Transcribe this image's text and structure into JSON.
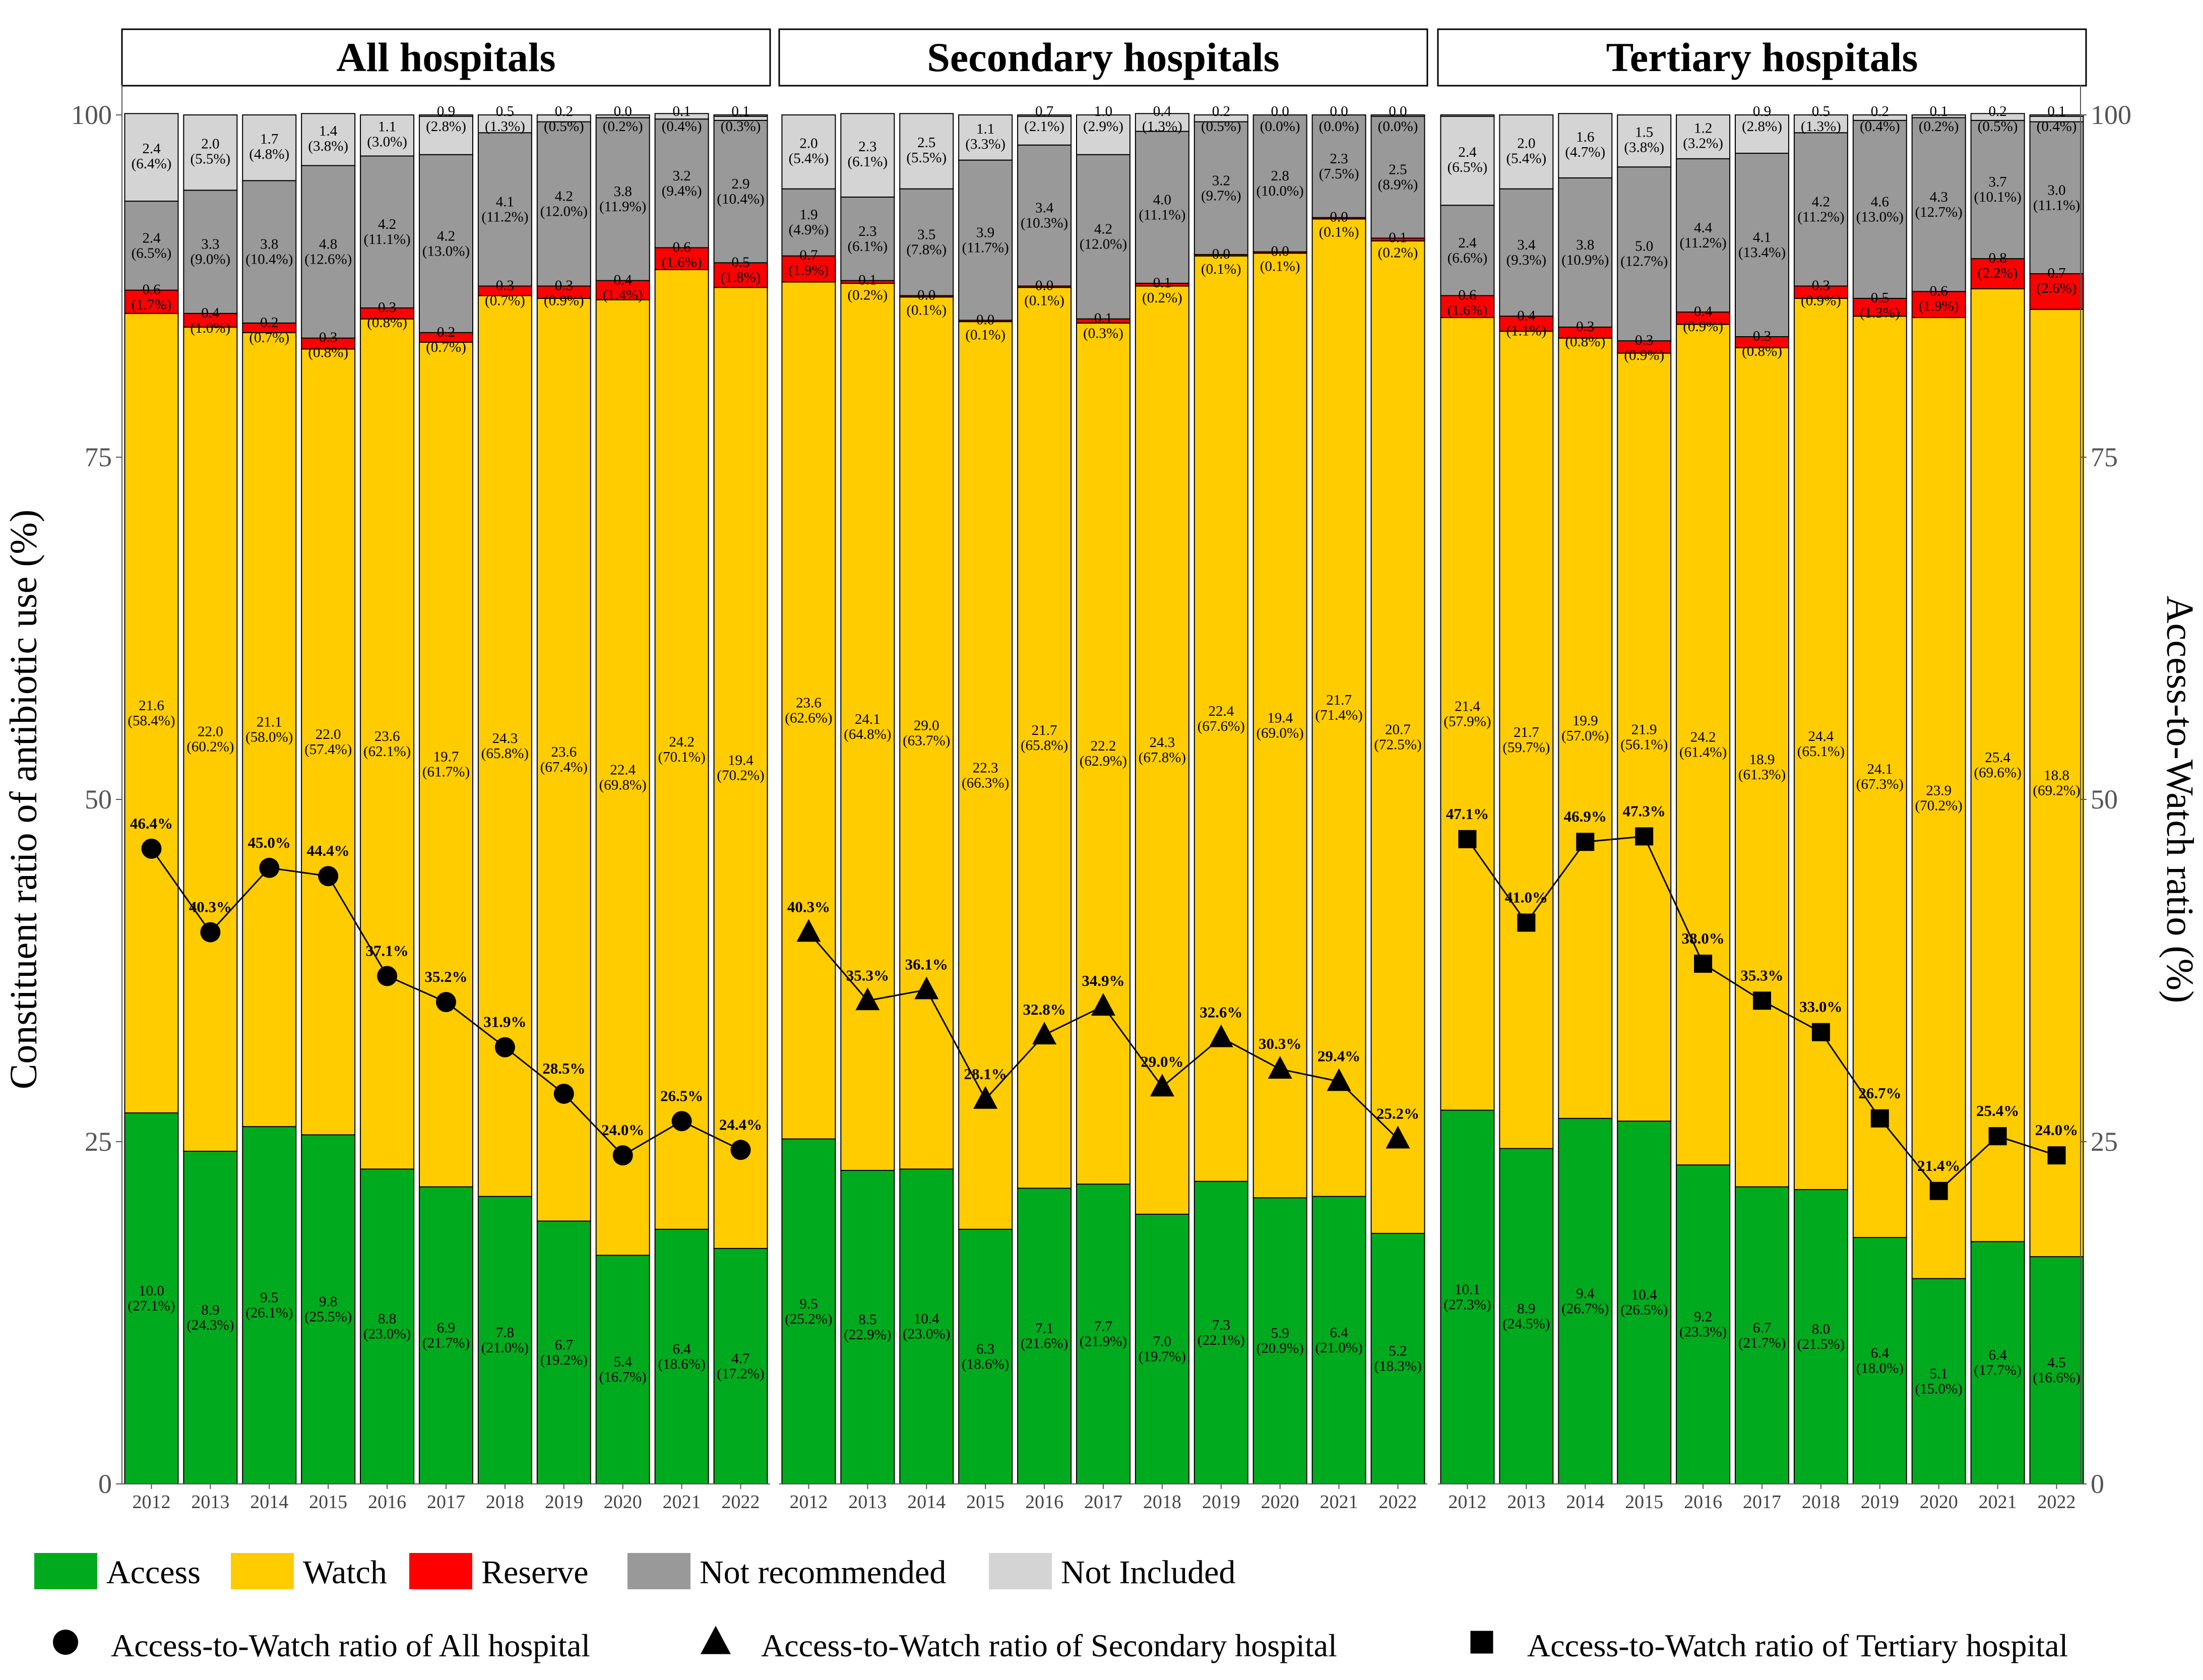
{
  "chart_data": {
    "type": "bar",
    "stacked": true,
    "ylabel_left": "Constituent ratio of antibiotic use (%)",
    "ylabel_right": "Access-to-Watch ratio (%)",
    "ylim": [
      0,
      100
    ],
    "y_ticks": [
      0,
      25,
      50,
      75,
      100
    ],
    "categories": [
      "2012",
      "2013",
      "2014",
      "2015",
      "2016",
      "2017",
      "2018",
      "2019",
      "2020",
      "2021",
      "2022"
    ],
    "colors": {
      "Access": "#00AA1F",
      "Watch": "#FFCC00",
      "Reserve": "#FF0000",
      "Not recommended": "#999999",
      "Not Included": "#D4D4D4"
    },
    "legend": {
      "categories": [
        {
          "name": "Access",
          "color": "#00AA1F"
        },
        {
          "name": "Watch",
          "color": "#FFCC00"
        },
        {
          "name": "Reserve",
          "color": "#FF0000"
        },
        {
          "name": "Not recommended",
          "color": "#999999"
        },
        {
          "name": "Not Included",
          "color": "#D4D4D4"
        }
      ],
      "markers": [
        {
          "shape": "circle",
          "label": "Access-to-Watch ratio of All hospital"
        },
        {
          "shape": "triangle",
          "label": "Access-to-Watch ratio of Secondary hospital"
        },
        {
          "shape": "square",
          "label": "Access-to-Watch ratio of Tertiary hospital"
        }
      ]
    },
    "panels": [
      {
        "title": "All hospitals",
        "marker": "circle",
        "access_to_watch": [
          46.4,
          40.3,
          45.0,
          44.4,
          37.1,
          35.2,
          31.9,
          28.5,
          24.0,
          26.5,
          24.4
        ],
        "series": [
          {
            "name": "Access",
            "values": [
              10.0,
              8.9,
              9.5,
              9.8,
              8.8,
              6.9,
              7.8,
              6.7,
              5.4,
              6.4,
              4.7
            ],
            "percent": [
              27.1,
              24.3,
              26.1,
              25.5,
              23.0,
              21.7,
              21.0,
              19.2,
              16.7,
              18.6,
              17.2
            ]
          },
          {
            "name": "Watch",
            "values": [
              21.6,
              22.0,
              21.1,
              22.0,
              23.6,
              19.7,
              24.3,
              23.6,
              22.4,
              24.2,
              19.4
            ],
            "percent": [
              58.4,
              60.2,
              58.0,
              57.4,
              62.1,
              61.7,
              65.8,
              67.4,
              69.8,
              70.1,
              70.2
            ]
          },
          {
            "name": "Reserve",
            "values": [
              0.6,
              0.4,
              0.2,
              0.3,
              0.3,
              0.2,
              0.3,
              0.3,
              0.4,
              0.6,
              0.5
            ],
            "percent": [
              1.7,
              1.0,
              0.7,
              0.8,
              0.8,
              0.7,
              0.7,
              0.9,
              1.4,
              1.6,
              1.8
            ]
          },
          {
            "name": "Not recommended",
            "values": [
              2.4,
              3.3,
              3.8,
              4.8,
              4.2,
              4.2,
              4.1,
              4.2,
              3.8,
              3.2,
              2.9
            ],
            "percent": [
              6.5,
              9.0,
              10.4,
              12.6,
              11.1,
              13.0,
              11.2,
              12.0,
              11.9,
              9.4,
              10.4
            ]
          },
          {
            "name": "Not Included",
            "values": [
              2.4,
              2.0,
              1.7,
              1.4,
              1.1,
              0.9,
              0.5,
              0.2,
              0.0,
              0.1,
              0.1
            ],
            "percent": [
              6.4,
              5.5,
              4.8,
              3.8,
              3.0,
              2.8,
              1.3,
              0.5,
              0.2,
              0.4,
              0.3
            ]
          }
        ]
      },
      {
        "title": "Secondary hospitals",
        "marker": "triangle",
        "access_to_watch": [
          40.3,
          35.3,
          36.1,
          28.1,
          32.8,
          34.9,
          29.0,
          32.6,
          30.3,
          29.4,
          25.2
        ],
        "series": [
          {
            "name": "Access",
            "values": [
              9.5,
              8.5,
              10.4,
              6.3,
              7.1,
              7.7,
              7.0,
              7.3,
              5.9,
              6.4,
              5.2
            ],
            "percent": [
              25.2,
              22.9,
              23.0,
              18.6,
              21.6,
              21.9,
              19.7,
              22.1,
              20.9,
              21.0,
              18.3
            ]
          },
          {
            "name": "Watch",
            "values": [
              23.6,
              24.1,
              29.0,
              22.3,
              21.7,
              22.2,
              24.3,
              22.4,
              19.4,
              21.7,
              20.7
            ],
            "percent": [
              62.6,
              64.8,
              63.7,
              66.3,
              65.8,
              62.9,
              67.8,
              67.6,
              69.0,
              71.4,
              72.5
            ]
          },
          {
            "name": "Reserve",
            "values": [
              0.7,
              0.1,
              0.0,
              0.0,
              0.0,
              0.1,
              0.1,
              0.0,
              0.0,
              0.0,
              0.1
            ],
            "percent": [
              1.9,
              0.2,
              0.1,
              0.1,
              0.1,
              0.3,
              0.2,
              0.1,
              0.1,
              0.1,
              0.2
            ]
          },
          {
            "name": "Not recommended",
            "values": [
              1.9,
              2.3,
              3.5,
              3.9,
              3.4,
              4.2,
              4.0,
              3.2,
              2.8,
              2.3,
              2.5
            ],
            "percent": [
              4.9,
              6.1,
              7.8,
              11.7,
              10.3,
              12.0,
              11.1,
              9.7,
              10.0,
              7.5,
              8.9
            ]
          },
          {
            "name": "Not Included",
            "values": [
              2.0,
              2.3,
              2.5,
              1.1,
              0.7,
              1.0,
              0.4,
              0.2,
              0.0,
              0.0,
              0.0
            ],
            "percent": [
              5.4,
              6.1,
              5.5,
              3.3,
              2.1,
              2.9,
              1.3,
              0.5,
              0.0,
              0.0,
              0.0
            ]
          }
        ]
      },
      {
        "title": "Tertiary hospitals",
        "marker": "square",
        "access_to_watch": [
          47.1,
          41.0,
          46.9,
          47.3,
          38.0,
          35.3,
          33.0,
          26.7,
          21.4,
          25.4,
          24.0
        ],
        "series": [
          {
            "name": "Access",
            "values": [
              10.1,
              8.9,
              9.4,
              10.4,
              9.2,
              6.7,
              8.0,
              6.4,
              5.1,
              6.4,
              4.5
            ],
            "percent": [
              27.3,
              24.5,
              26.7,
              26.5,
              23.3,
              21.7,
              21.5,
              18.0,
              15.0,
              17.7,
              16.6
            ]
          },
          {
            "name": "Watch",
            "values": [
              21.4,
              21.7,
              19.9,
              21.9,
              24.2,
              18.9,
              24.4,
              24.1,
              23.9,
              25.4,
              18.8
            ],
            "percent": [
              57.9,
              59.7,
              57.0,
              56.1,
              61.4,
              61.3,
              65.1,
              67.3,
              70.2,
              69.6,
              69.2
            ]
          },
          {
            "name": "Reserve",
            "values": [
              0.6,
              0.4,
              0.3,
              0.3,
              0.4,
              0.3,
              0.3,
              0.5,
              0.6,
              0.8,
              0.7
            ],
            "percent": [
              1.6,
              1.1,
              0.8,
              0.9,
              0.9,
              0.8,
              0.9,
              1.3,
              1.9,
              2.2,
              2.6
            ]
          },
          {
            "name": "Not recommended",
            "values": [
              2.4,
              3.4,
              3.8,
              5.0,
              4.4,
              4.1,
              4.2,
              4.6,
              4.3,
              3.7,
              3.0
            ],
            "percent": [
              6.6,
              9.3,
              10.9,
              12.7,
              11.2,
              13.4,
              11.2,
              13.0,
              12.7,
              10.1,
              11.1
            ]
          },
          {
            "name": "Not Included",
            "values": [
              2.4,
              2.0,
              1.6,
              1.5,
              1.2,
              0.9,
              0.5,
              0.2,
              0.1,
              0.2,
              0.1
            ],
            "percent": [
              6.5,
              5.4,
              4.7,
              3.8,
              3.2,
              2.8,
              1.3,
              0.4,
              0.2,
              0.5,
              0.4
            ]
          }
        ]
      }
    ]
  }
}
